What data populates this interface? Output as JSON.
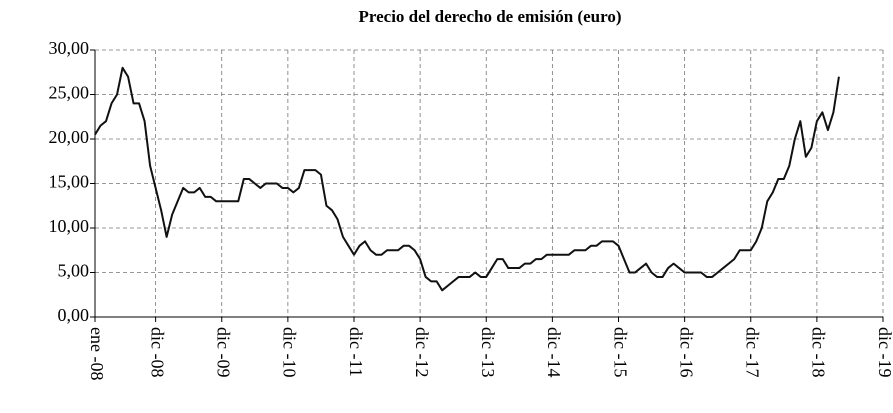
{
  "chart_data": {
    "type": "line",
    "title": "Precio del derecho de emisión (euro)",
    "x": [
      0,
      1,
      2,
      3,
      4,
      5,
      6,
      7,
      8,
      9,
      10,
      11,
      12,
      13,
      14,
      15,
      16,
      17,
      18,
      19,
      20,
      21,
      22,
      23,
      24,
      25,
      26,
      27,
      28,
      29,
      30,
      31,
      32,
      33,
      34,
      35,
      36,
      37,
      38,
      39,
      40,
      41,
      42,
      43,
      44,
      45,
      46,
      47,
      48,
      49,
      50,
      51,
      52,
      53,
      54,
      55,
      56,
      57,
      58,
      59,
      60,
      61,
      62,
      63,
      64,
      65,
      66,
      67,
      68,
      69,
      70,
      71,
      72,
      73,
      74,
      75,
      76,
      77,
      78,
      79,
      80,
      81,
      82,
      83,
      84,
      85,
      86,
      87,
      88,
      89,
      90,
      91,
      92,
      93,
      94,
      95,
      96,
      97,
      98,
      99,
      100,
      101,
      102,
      103,
      104,
      105,
      106,
      107,
      108,
      109,
      110,
      111,
      112,
      113,
      114,
      115,
      116,
      117,
      118,
      119,
      120,
      121,
      122,
      123,
      124,
      125,
      126,
      127,
      128,
      129,
      130,
      131,
      132,
      133,
      134,
      135
    ],
    "series": [
      {
        "color": "#111111",
        "values": [
          20.5,
          21.5,
          22,
          24,
          25,
          28,
          27,
          24,
          24,
          22,
          17,
          14.5,
          12,
          9,
          11.5,
          13,
          14.5,
          14,
          14,
          14.5,
          13.5,
          13.5,
          13,
          13,
          13,
          13,
          13,
          15.5,
          15.5,
          15,
          14.5,
          15,
          15,
          15,
          14.5,
          14.5,
          14,
          14.5,
          16.5,
          16.5,
          16.5,
          16,
          12.5,
          12,
          11,
          9,
          8,
          7,
          8,
          8.5,
          7.5,
          7,
          7,
          7.5,
          7.5,
          7.5,
          8,
          8,
          7.5,
          6.5,
          4.5,
          4,
          4,
          3,
          3.5,
          4,
          4.5,
          4.5,
          4.5,
          5,
          4.5,
          4.5,
          5.5,
          6.5,
          6.5,
          5.5,
          5.5,
          5.5,
          6,
          6,
          6.5,
          6.5,
          7,
          7,
          7,
          7,
          7,
          7.5,
          7.5,
          7.5,
          8,
          8,
          8.5,
          8.5,
          8.5,
          8,
          6.5,
          5,
          5,
          5.5,
          6,
          5,
          4.5,
          4.5,
          5.5,
          6,
          5.5,
          5,
          5,
          5,
          5,
          4.5,
          4.5,
          5,
          5.5,
          6,
          6.5,
          7.5,
          7.5,
          7.5,
          8.5,
          10,
          13,
          14,
          15.5,
          15.5,
          17,
          20,
          22,
          18,
          19,
          22,
          23,
          21,
          23,
          27
        ]
      }
    ],
    "xlim": [
      0,
      143
    ],
    "xticks": [
      {
        "value": 0,
        "label": "ene -08"
      },
      {
        "value": 11,
        "label": "dic -08"
      },
      {
        "value": 23,
        "label": "dic -09"
      },
      {
        "value": 35,
        "label": "dic -10"
      },
      {
        "value": 47,
        "label": "dic -11"
      },
      {
        "value": 59,
        "label": "dic -12"
      },
      {
        "value": 71,
        "label": "dic -13"
      },
      {
        "value": 83,
        "label": "dic -14"
      },
      {
        "value": 95,
        "label": "dic -15"
      },
      {
        "value": 107,
        "label": "dic -16"
      },
      {
        "value": 119,
        "label": "dic -17"
      },
      {
        "value": 131,
        "label": "dic -18"
      },
      {
        "value": 143,
        "label": "dic -19"
      }
    ],
    "ylim": [
      0,
      30
    ],
    "yticks": [
      {
        "value": 0,
        "label": "0,00"
      },
      {
        "value": 5,
        "label": "5,00"
      },
      {
        "value": 10,
        "label": "10,00"
      },
      {
        "value": 15,
        "label": "15,00"
      },
      {
        "value": 20,
        "label": "20,00"
      },
      {
        "value": 25,
        "label": "25,00"
      },
      {
        "value": 30,
        "label": "30,00"
      }
    ],
    "grid": true
  }
}
